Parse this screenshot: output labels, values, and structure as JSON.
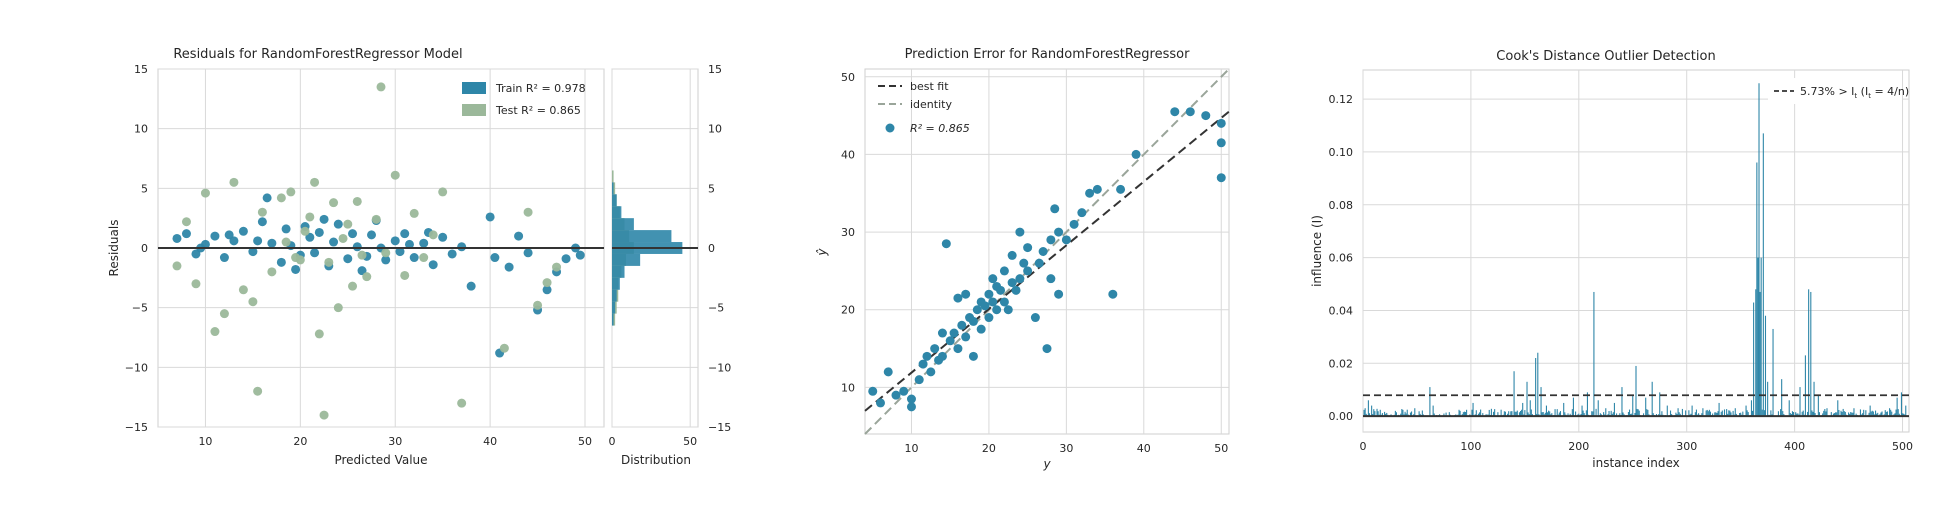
{
  "chart_data": [
    {
      "type": "scatter",
      "title": "Residuals for RandomForestRegressor Model",
      "xlabel": "Predicted Value",
      "ylabel": "Residuals",
      "xlim": [
        5,
        52
      ],
      "ylim": [
        -15,
        15
      ],
      "xticks": [
        "10",
        "20",
        "30",
        "40",
        "50"
      ],
      "yticks": [
        "−15",
        "−10",
        "−5",
        "0",
        "5",
        "10",
        "15"
      ],
      "grid": true,
      "legend_position": "top-right",
      "legend": [
        {
          "label": "Train R² = 0.978",
          "color": "#2e86a8"
        },
        {
          "label": "Test R² = 0.865",
          "color": "#9bb89a"
        }
      ],
      "series": [
        {
          "name": "Train R² = 0.978",
          "color": "#2e86a8",
          "points": [
            [
              7,
              0.8
            ],
            [
              8,
              1.2
            ],
            [
              9,
              -0.5
            ],
            [
              10,
              0.3
            ],
            [
              11,
              1.0
            ],
            [
              12,
              -0.8
            ],
            [
              13,
              0.6
            ],
            [
              14,
              1.4
            ],
            [
              15,
              -0.3
            ],
            [
              16,
              2.2
            ],
            [
              16.5,
              4.2
            ],
            [
              17,
              0.4
            ],
            [
              18,
              -1.2
            ],
            [
              18.5,
              1.6
            ],
            [
              19,
              0.2
            ],
            [
              20,
              -0.6
            ],
            [
              20.5,
              1.8
            ],
            [
              21,
              0.9
            ],
            [
              21.5,
              -0.4
            ],
            [
              22,
              1.3
            ],
            [
              23,
              -1.5
            ],
            [
              23.5,
              0.5
            ],
            [
              24,
              2.0
            ],
            [
              25,
              -0.9
            ],
            [
              25.5,
              1.2
            ],
            [
              26,
              0.1
            ],
            [
              27,
              -0.7
            ],
            [
              27.5,
              1.1
            ],
            [
              28,
              2.3
            ],
            [
              29,
              -1.0
            ],
            [
              30,
              0.6
            ],
            [
              30.5,
              -0.3
            ],
            [
              31,
              1.2
            ],
            [
              32,
              -0.8
            ],
            [
              33,
              0.4
            ],
            [
              34,
              -1.4
            ],
            [
              35,
              0.9
            ],
            [
              36,
              -0.5
            ],
            [
              38,
              -3.2
            ],
            [
              40,
              2.6
            ],
            [
              40.5,
              -0.8
            ],
            [
              41,
              -8.8
            ],
            [
              42,
              -1.6
            ],
            [
              43,
              1.0
            ],
            [
              44,
              -0.4
            ],
            [
              45,
              -5.2
            ],
            [
              46,
              -3.5
            ],
            [
              47,
              -2.0
            ],
            [
              48,
              -0.9
            ],
            [
              49,
              0.0
            ],
            [
              49.5,
              -0.6
            ],
            [
              9.5,
              0.0
            ],
            [
              12.5,
              1.1
            ],
            [
              15.5,
              0.6
            ],
            [
              19.5,
              -1.8
            ],
            [
              22.5,
              2.4
            ],
            [
              26.5,
              -1.9
            ],
            [
              28.5,
              0.0
            ],
            [
              31.5,
              0.3
            ],
            [
              33.5,
              1.3
            ],
            [
              37,
              0.1
            ]
          ]
        },
        {
          "name": "Test R² = 0.865",
          "color": "#9bb89a",
          "points": [
            [
              7,
              -1.5
            ],
            [
              8,
              2.2
            ],
            [
              9,
              -3.0
            ],
            [
              10,
              4.6
            ],
            [
              11,
              -7.0
            ],
            [
              12,
              -5.5
            ],
            [
              13,
              5.5
            ],
            [
              14,
              -3.5
            ],
            [
              15,
              -4.5
            ],
            [
              15.5,
              -12.0
            ],
            [
              16,
              3.0
            ],
            [
              17,
              -2.0
            ],
            [
              18,
              4.2
            ],
            [
              19,
              4.7
            ],
            [
              20,
              -1.0
            ],
            [
              21,
              2.6
            ],
            [
              21.5,
              5.5
            ],
            [
              22,
              -7.2
            ],
            [
              22.5,
              -14.0
            ],
            [
              23,
              -1.2
            ],
            [
              23.5,
              3.8
            ],
            [
              24,
              -5.0
            ],
            [
              25,
              2.0
            ],
            [
              25.5,
              -3.2
            ],
            [
              26,
              3.9
            ],
            [
              27,
              -2.4
            ],
            [
              28,
              2.4
            ],
            [
              28.5,
              13.5
            ],
            [
              29,
              -0.4
            ],
            [
              30,
              6.1
            ],
            [
              31,
              -2.3
            ],
            [
              32,
              2.9
            ],
            [
              33,
              -0.8
            ],
            [
              34,
              1.1
            ],
            [
              35,
              4.7
            ],
            [
              37,
              -13.0
            ],
            [
              41.5,
              -8.4
            ],
            [
              44,
              3.0
            ],
            [
              45,
              -4.8
            ],
            [
              46,
              -2.9
            ],
            [
              47,
              -1.6
            ],
            [
              18.5,
              0.5
            ],
            [
              19.5,
              -0.8
            ],
            [
              20.5,
              1.4
            ],
            [
              24.5,
              0.8
            ],
            [
              26.5,
              -0.6
            ]
          ]
        }
      ],
      "distribution": {
        "xlabel": "Distribution",
        "xlim": [
          0,
          55
        ],
        "xticks": [
          "0",
          "50"
        ],
        "bins_center": [
          -6.0,
          -5.0,
          -4.0,
          -3.0,
          -2.0,
          -1.0,
          0.0,
          1.0,
          2.0,
          3.0,
          4.0,
          5.0,
          6.0
        ],
        "train_counts": [
          1,
          2,
          3,
          5,
          8,
          18,
          45,
          38,
          14,
          6,
          3,
          1,
          0
        ],
        "test_counts": [
          2,
          3,
          4,
          4,
          6,
          9,
          14,
          11,
          8,
          5,
          3,
          2,
          1
        ]
      }
    },
    {
      "type": "scatter",
      "title": "Prediction Error for RandomForestRegressor",
      "xlabel": "y",
      "ylabel": "ŷ",
      "xlim": [
        4,
        51
      ],
      "ylim": [
        4,
        51
      ],
      "xticks": [
        "10",
        "20",
        "30",
        "40",
        "50"
      ],
      "yticks": [
        "10",
        "20",
        "30",
        "40",
        "50"
      ],
      "grid": true,
      "legend_position": "top-left",
      "legend": [
        {
          "label": "best fit"
        },
        {
          "label": "identity"
        },
        {
          "label": "R² = 0.865"
        }
      ],
      "best_fit": {
        "slope": 0.82,
        "intercept": 3.7
      },
      "points": [
        [
          5,
          9.5
        ],
        [
          6,
          8
        ],
        [
          7,
          12
        ],
        [
          8,
          9
        ],
        [
          9,
          9.5
        ],
        [
          10,
          7.5
        ],
        [
          10,
          8.5
        ],
        [
          11,
          11
        ],
        [
          11.5,
          13
        ],
        [
          12,
          14
        ],
        [
          12.5,
          12
        ],
        [
          13,
          15
        ],
        [
          13.5,
          13.5
        ],
        [
          14,
          17
        ],
        [
          14,
          14
        ],
        [
          14.5,
          28.5
        ],
        [
          15,
          16
        ],
        [
          15.5,
          17
        ],
        [
          16,
          15
        ],
        [
          16,
          21.5
        ],
        [
          16.5,
          18
        ],
        [
          17,
          16.5
        ],
        [
          17,
          22
        ],
        [
          17.5,
          19
        ],
        [
          18,
          18.5
        ],
        [
          18,
          14
        ],
        [
          18.5,
          20
        ],
        [
          19,
          21
        ],
        [
          19,
          17.5
        ],
        [
          19.5,
          20.5
        ],
        [
          20,
          22
        ],
        [
          20,
          19
        ],
        [
          20.5,
          21
        ],
        [
          20.5,
          24
        ],
        [
          21,
          20
        ],
        [
          21,
          23
        ],
        [
          21.5,
          22.5
        ],
        [
          22,
          21
        ],
        [
          22,
          25
        ],
        [
          22.5,
          20
        ],
        [
          23,
          23.5
        ],
        [
          23,
          27
        ],
        [
          23.5,
          22.5
        ],
        [
          24,
          24
        ],
        [
          24,
          30
        ],
        [
          24.5,
          26
        ],
        [
          25,
          25
        ],
        [
          25,
          28
        ],
        [
          26,
          19
        ],
        [
          26.5,
          26
        ],
        [
          27,
          27.5
        ],
        [
          27.5,
          15
        ],
        [
          28,
          29
        ],
        [
          28,
          24
        ],
        [
          28.5,
          33
        ],
        [
          29,
          30
        ],
        [
          29,
          22
        ],
        [
          30,
          29
        ],
        [
          31,
          31
        ],
        [
          32,
          32.5
        ],
        [
          33,
          35
        ],
        [
          34,
          35.5
        ],
        [
          36,
          22
        ],
        [
          37,
          35.5
        ],
        [
          39,
          40
        ],
        [
          44,
          45.5
        ],
        [
          46,
          45.5
        ],
        [
          48,
          45
        ],
        [
          50,
          41.5
        ],
        [
          50,
          37
        ],
        [
          50,
          44
        ]
      ]
    },
    {
      "type": "bar",
      "title": "Cook's Distance Outlier Detection",
      "xlabel": "instance index",
      "ylabel": "influence (I)",
      "xlim": [
        0,
        506
      ],
      "ylim": [
        -0.006,
        0.131
      ],
      "xticks": [
        "0",
        "100",
        "200",
        "300",
        "400",
        "500"
      ],
      "yticks": [
        "0.00",
        "0.02",
        "0.04",
        "0.06",
        "0.08",
        "0.10",
        "0.12"
      ],
      "grid": true,
      "threshold": 0.0079,
      "legend_position": "top-right",
      "legend": [
        {
          "label": "5.73% > I",
          "sub": "t",
          "formula": " (I",
          "formula_sub": "t",
          "formula_tail": " = 4/n)"
        }
      ],
      "n": 506,
      "peaks": [
        [
          2,
          0.003
        ],
        [
          5,
          0.006
        ],
        [
          8,
          0.004
        ],
        [
          30,
          0.002
        ],
        [
          48,
          0.003
        ],
        [
          62,
          0.011
        ],
        [
          65,
          0.004
        ],
        [
          90,
          0.002
        ],
        [
          102,
          0.005
        ],
        [
          140,
          0.017
        ],
        [
          148,
          0.005
        ],
        [
          152,
          0.013
        ],
        [
          155,
          0.006
        ],
        [
          160,
          0.022
        ],
        [
          162,
          0.024
        ],
        [
          165,
          0.011
        ],
        [
          170,
          0.004
        ],
        [
          186,
          0.005
        ],
        [
          195,
          0.007
        ],
        [
          203,
          0.004
        ],
        [
          208,
          0.009
        ],
        [
          214,
          0.047
        ],
        [
          218,
          0.006
        ],
        [
          225,
          0.003
        ],
        [
          233,
          0.005
        ],
        [
          240,
          0.011
        ],
        [
          250,
          0.008
        ],
        [
          253,
          0.019
        ],
        [
          262,
          0.007
        ],
        [
          268,
          0.013
        ],
        [
          275,
          0.009
        ],
        [
          282,
          0.004
        ],
        [
          292,
          0.003
        ],
        [
          305,
          0.004
        ],
        [
          315,
          0.003
        ],
        [
          330,
          0.005
        ],
        [
          345,
          0.003
        ],
        [
          355,
          0.004
        ],
        [
          360,
          0.006
        ],
        [
          362,
          0.043
        ],
        [
          364,
          0.048
        ],
        [
          365,
          0.096
        ],
        [
          366,
          0.06
        ],
        [
          367,
          0.126
        ],
        [
          368,
          0.047
        ],
        [
          369,
          0.06
        ],
        [
          371,
          0.107
        ],
        [
          373,
          0.038
        ],
        [
          375,
          0.013
        ],
        [
          380,
          0.033
        ],
        [
          388,
          0.014
        ],
        [
          395,
          0.006
        ],
        [
          405,
          0.011
        ],
        [
          410,
          0.023
        ],
        [
          413,
          0.048
        ],
        [
          415,
          0.047
        ],
        [
          418,
          0.013
        ],
        [
          422,
          0.008
        ],
        [
          430,
          0.003
        ],
        [
          440,
          0.006
        ],
        [
          455,
          0.003
        ],
        [
          470,
          0.004
        ],
        [
          488,
          0.003
        ],
        [
          495,
          0.007
        ],
        [
          499,
          0.009
        ],
        [
          503,
          0.004
        ]
      ]
    }
  ]
}
